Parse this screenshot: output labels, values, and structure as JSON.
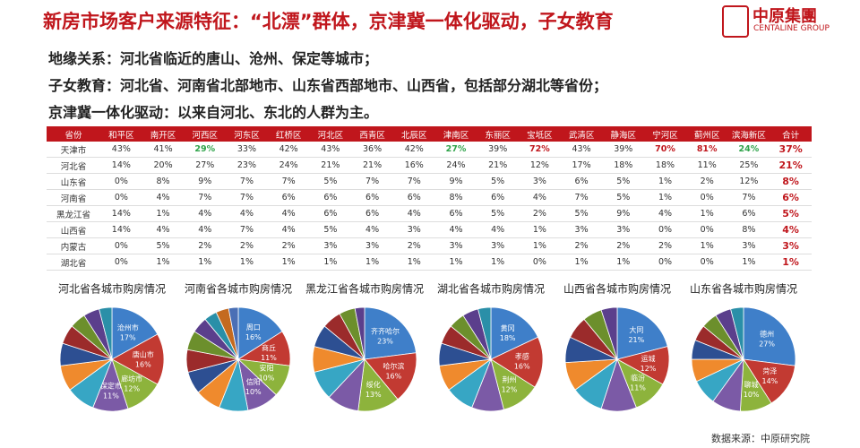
{
  "header": {
    "title": "新房市场客户来源特征：“北漂”群体，京津冀一体化驱动，子女教育",
    "logo_cn": "中原集團",
    "logo_en": "CENTALINE GROUP"
  },
  "bullets": [
    "地缘关系：河北省临近的唐山、沧州、保定等城市；",
    "子女教育：河北省、河南省北部地市、山东省西部地市、山西省，包括部分湖北等省份；",
    "京津冀一体化驱动：以来自河北、东北的人群为主。"
  ],
  "table": {
    "columns": [
      "省份",
      "和平区",
      "南开区",
      "河西区",
      "河东区",
      "红桥区",
      "河北区",
      "西青区",
      "北辰区",
      "津南区",
      "东丽区",
      "宝坻区",
      "武清区",
      "静海区",
      "宁河区",
      "蓟州区",
      "滨海新区",
      "合计"
    ],
    "rows": [
      [
        "天津市",
        "43%",
        "41%",
        "29%",
        "33%",
        "42%",
        "43%",
        "36%",
        "42%",
        "27%",
        "39%",
        "72%",
        "43%",
        "39%",
        "70%",
        "81%",
        "24%",
        "37%"
      ],
      [
        "河北省",
        "14%",
        "20%",
        "27%",
        "23%",
        "24%",
        "21%",
        "21%",
        "16%",
        "24%",
        "21%",
        "12%",
        "17%",
        "18%",
        "18%",
        "11%",
        "25%",
        "21%"
      ],
      [
        "山东省",
        "0%",
        "8%",
        "9%",
        "7%",
        "7%",
        "5%",
        "7%",
        "7%",
        "9%",
        "5%",
        "3%",
        "6%",
        "5%",
        "1%",
        "2%",
        "12%",
        "8%"
      ],
      [
        "河南省",
        "0%",
        "4%",
        "7%",
        "7%",
        "6%",
        "6%",
        "6%",
        "6%",
        "8%",
        "6%",
        "4%",
        "7%",
        "5%",
        "1%",
        "0%",
        "7%",
        "6%"
      ],
      [
        "黑龙江省",
        "14%",
        "1%",
        "4%",
        "4%",
        "4%",
        "6%",
        "6%",
        "4%",
        "6%",
        "5%",
        "2%",
        "5%",
        "9%",
        "4%",
        "1%",
        "6%",
        "5%"
      ],
      [
        "山西省",
        "14%",
        "4%",
        "4%",
        "7%",
        "4%",
        "5%",
        "4%",
        "3%",
        "4%",
        "4%",
        "1%",
        "3%",
        "3%",
        "0%",
        "0%",
        "8%",
        "4%"
      ],
      [
        "内蒙古",
        "0%",
        "5%",
        "2%",
        "2%",
        "2%",
        "3%",
        "3%",
        "2%",
        "3%",
        "3%",
        "1%",
        "2%",
        "2%",
        "2%",
        "1%",
        "3%",
        "3%"
      ],
      [
        "湖北省",
        "0%",
        "1%",
        "1%",
        "1%",
        "1%",
        "1%",
        "1%",
        "1%",
        "1%",
        "1%",
        "0%",
        "1%",
        "1%",
        "0%",
        "0%",
        "1%",
        "1%"
      ]
    ]
  },
  "pie_colors": [
    "#3f7fc9",
    "#c23a32",
    "#8db33c",
    "#7b5aa6",
    "#37a6c4",
    "#ef8a2d",
    "#2d4f92",
    "#9b2b2b",
    "#6c8f2c",
    "#5b3f8c",
    "#2a8fa8",
    "#c46a1f",
    "#4a6fb5"
  ],
  "pies": [
    {
      "title": "河北省各城市购房情况",
      "slices": [
        {
          "label": "沧州市",
          "value": 17,
          "value_label": "17%"
        },
        {
          "label": "唐山市",
          "value": 16,
          "value_label": "16%"
        },
        {
          "label": "廊坊市",
          "value": 12,
          "value_label": "12%"
        },
        {
          "label": "保定市",
          "value": 11,
          "value_label": "11%"
        },
        {
          "value": 9
        },
        {
          "value": 8
        },
        {
          "value": 7
        },
        {
          "value": 6
        },
        {
          "value": 5
        },
        {
          "value": 5
        },
        {
          "value": 4
        }
      ]
    },
    {
      "title": "河南省各城市购房情况",
      "slices": [
        {
          "label": "周口",
          "value": 16,
          "value_label": "16%"
        },
        {
          "label": "商丘",
          "value": 11,
          "value_label": "11%"
        },
        {
          "label": "安阳",
          "value": 10,
          "value_label": "10%"
        },
        {
          "label": "信阳",
          "value": 10,
          "value_label": "10%"
        },
        {
          "value": 9
        },
        {
          "value": 8
        },
        {
          "value": 7
        },
        {
          "value": 7
        },
        {
          "value": 6
        },
        {
          "value": 5
        },
        {
          "value": 4
        },
        {
          "value": 4
        },
        {
          "value": 3
        }
      ]
    },
    {
      "title": "黑龙江省各城市购房情况",
      "slices": [
        {
          "label": "齐齐哈尔",
          "value": 23,
          "value_label": "23%"
        },
        {
          "label": "哈尔滨",
          "value": 16,
          "value_label": "16%"
        },
        {
          "label": "绥化",
          "value": 13,
          "value_label": "13%"
        },
        {
          "value": 10
        },
        {
          "value": 9
        },
        {
          "value": 8
        },
        {
          "value": 7
        },
        {
          "value": 6
        },
        {
          "value": 5
        },
        {
          "value": 3
        }
      ]
    },
    {
      "title": "湖北省各城市购房情况",
      "slices": [
        {
          "label": "黄冈",
          "value": 18,
          "value_label": "18%"
        },
        {
          "label": "孝感",
          "value": 16,
          "value_label": "16%"
        },
        {
          "label": "荆州",
          "value": 12,
          "value_label": "12%"
        },
        {
          "value": 10
        },
        {
          "value": 9
        },
        {
          "value": 8
        },
        {
          "value": 7
        },
        {
          "value": 6
        },
        {
          "value": 5
        },
        {
          "value": 5
        },
        {
          "value": 4
        }
      ]
    },
    {
      "title": "山西省各城市购房情况",
      "slices": [
        {
          "label": "大同",
          "value": 21,
          "value_label": "21%"
        },
        {
          "label": "运城",
          "value": 12,
          "value_label": "12%"
        },
        {
          "label": "临汾",
          "value": 11,
          "value_label": "11%"
        },
        {
          "value": 11
        },
        {
          "value": 10
        },
        {
          "value": 9
        },
        {
          "value": 8
        },
        {
          "value": 7
        },
        {
          "value": 6
        },
        {
          "value": 5
        }
      ]
    },
    {
      "title": "山东省各城市购房情况",
      "slices": [
        {
          "label": "德州",
          "value": 27,
          "value_label": "27%"
        },
        {
          "label": "菏泽",
          "value": 14,
          "value_label": "14%"
        },
        {
          "label": "聊城",
          "value": 10,
          "value_label": "10%"
        },
        {
          "value": 9
        },
        {
          "value": 8
        },
        {
          "value": 7
        },
        {
          "value": 6
        },
        {
          "value": 5
        },
        {
          "value": 5
        },
        {
          "value": 5
        },
        {
          "value": 4
        }
      ]
    }
  ],
  "source": "数据来源：中原研究院"
}
